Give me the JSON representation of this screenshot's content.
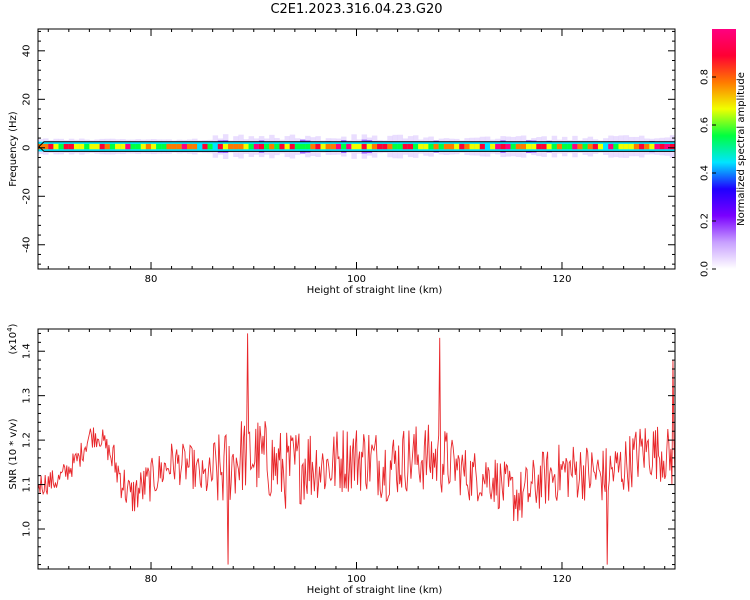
{
  "title": "C2E1.2023.316.04.23.G20",
  "colors": {
    "line": "#e8262a",
    "band_outline": "#000000",
    "axes": "#000000"
  },
  "chart_data": [
    {
      "type": "heatmap",
      "xlabel": "Height of straight line (km)",
      "ylabel": "Frequency (Hz)",
      "xlim": [
        69,
        131
      ],
      "ylim": [
        -50,
        49
      ],
      "x_ticks": [
        80,
        100,
        120
      ],
      "y_ticks": [
        -40,
        -20,
        0,
        20,
        40
      ],
      "x_tick_labels": [
        "80",
        "100",
        "120"
      ],
      "y_tick_labels": [
        "-40",
        "-20",
        "0",
        "20",
        "40"
      ],
      "band_center_hz": 0.5,
      "band_halfwidth_hz": 2,
      "colorbar": {
        "label": "Normalized spectral amplitude",
        "range": [
          0,
          1
        ],
        "ticks": [
          0.0,
          0.2,
          0.4,
          0.6,
          0.8
        ],
        "tick_labels": [
          "0.0",
          "0.2",
          "0.4",
          "0.6",
          "0.8"
        ],
        "colors": [
          "#ffffff",
          "#c8a0ff",
          "#7a00ff",
          "#1f00ff",
          "#00e5ff",
          "#00ff40",
          "#f0ff00",
          "#ff7a00",
          "#ff0033",
          "#ff0080"
        ]
      }
    },
    {
      "type": "line",
      "xlabel": "Height of straight line (km)",
      "ylabel": "SNR (10 * v/v)",
      "scale_note": "(x10",
      "scale_exp": "4",
      "scale_close": ")",
      "xlim": [
        69,
        131
      ],
      "ylim": [
        0.91,
        1.45
      ],
      "x_ticks": [
        80,
        100,
        120
      ],
      "y_ticks": [
        1.0,
        1.1,
        1.2,
        1.3,
        1.4
      ],
      "x_tick_labels": [
        "80",
        "100",
        "120"
      ],
      "y_tick_labels": [
        "1.0",
        "1.1",
        "1.2",
        "1.3",
        "1.4"
      ],
      "trend": {
        "x": [
          69,
          71,
          73,
          74,
          75,
          76,
          77,
          78,
          80,
          82,
          84,
          85,
          87,
          89,
          91,
          93,
          95,
          97,
          99,
          101,
          103,
          105,
          107,
          109,
          111,
          113,
          115,
          116,
          118,
          120,
          122,
          124,
          126,
          128,
          130,
          131
        ],
        "y": [
          1.1,
          1.11,
          1.16,
          1.21,
          1.21,
          1.17,
          1.12,
          1.07,
          1.11,
          1.15,
          1.14,
          1.11,
          1.13,
          1.17,
          1.16,
          1.13,
          1.15,
          1.14,
          1.16,
          1.16,
          1.14,
          1.16,
          1.16,
          1.15,
          1.12,
          1.12,
          1.08,
          1.07,
          1.11,
          1.13,
          1.13,
          1.12,
          1.14,
          1.18,
          1.17,
          1.15
        ]
      },
      "noise_amplitude": 0.06,
      "notable_points": [
        {
          "x": 87.5,
          "y": 0.92
        },
        {
          "x": 89.4,
          "y": 1.44
        },
        {
          "x": 108.1,
          "y": 1.43
        },
        {
          "x": 124.4,
          "y": 0.92
        },
        {
          "x": 130.8,
          "y": 1.38
        }
      ]
    }
  ]
}
